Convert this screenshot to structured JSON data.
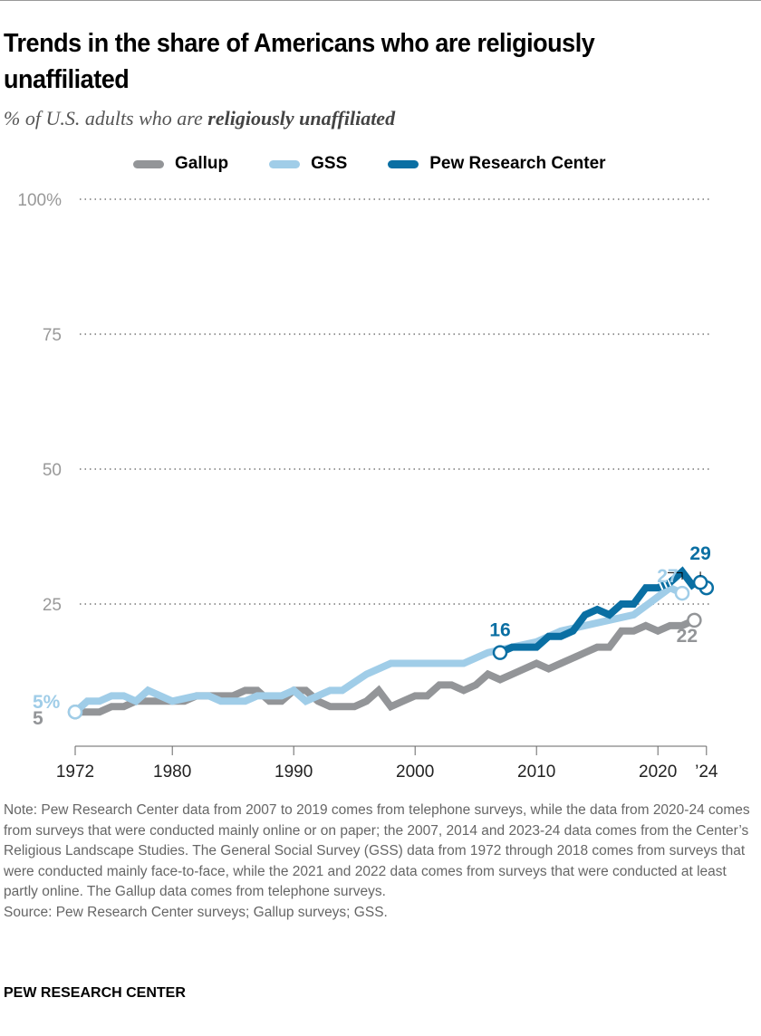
{
  "title": "Trends in the share of Americans who are religiously unaffiliated",
  "subtitle_prefix": "% of U.S. adults who are ",
  "subtitle_bold": "religiously unaffiliated",
  "colors": {
    "Gallup": "#939598",
    "GSS": "#a0cde8",
    "Pew Research Center": "#0a6fa3"
  },
  "chart_data": {
    "type": "line",
    "xlim": [
      1972,
      2024
    ],
    "ylim": [
      0,
      100
    ],
    "y_ticks": [
      "100%",
      "75",
      "50",
      "25"
    ],
    "y_tick_values": [
      100,
      75,
      50,
      25
    ],
    "x_ticks": [
      "1972",
      "1980",
      "1990",
      "2000",
      "2010",
      "2020",
      "’24"
    ],
    "x_tick_values": [
      1972,
      1980,
      1990,
      2000,
      2010,
      2020,
      2024
    ],
    "grid": "dotted horizontal",
    "legend_placement": "top",
    "series": [
      {
        "name": "Gallup",
        "x": [
          1972,
          1973,
          1974,
          1975,
          1976,
          1977,
          1978,
          1979,
          1980,
          1981,
          1982,
          1983,
          1984,
          1985,
          1986,
          1987,
          1988,
          1989,
          1990,
          1991,
          1992,
          1993,
          1994,
          1995,
          1996,
          1997,
          1998,
          1999,
          2000,
          2001,
          2002,
          2003,
          2004,
          2005,
          2006,
          2007,
          2008,
          2009,
          2010,
          2011,
          2012,
          2013,
          2014,
          2015,
          2016,
          2017,
          2018,
          2019,
          2020,
          2021,
          2022,
          2023
        ],
        "y": [
          5,
          5,
          5,
          6,
          6,
          7,
          7,
          7,
          7,
          7,
          8,
          8,
          8,
          8,
          9,
          9,
          7,
          7,
          9,
          9,
          7,
          6,
          6,
          6,
          7,
          9,
          6,
          7,
          8,
          8,
          10,
          10,
          9,
          10,
          12,
          11,
          12,
          13,
          14,
          13,
          14,
          15,
          16,
          17,
          17,
          20,
          20,
          21,
          20,
          21,
          21,
          22
        ]
      },
      {
        "name": "GSS",
        "x": [
          1972,
          1973,
          1974,
          1975,
          1976,
          1977,
          1978,
          1980,
          1982,
          1983,
          1984,
          1985,
          1986,
          1987,
          1988,
          1989,
          1990,
          1991,
          1993,
          1994,
          1996,
          1998,
          2000,
          2002,
          2004,
          2006,
          2008,
          2010,
          2012,
          2014,
          2016,
          2018,
          2021,
          2022
        ],
        "y": [
          5,
          7,
          7,
          8,
          8,
          7,
          9,
          7,
          8,
          8,
          7,
          7,
          7,
          8,
          8,
          8,
          9,
          7,
          9,
          9,
          12,
          14,
          14,
          14,
          14,
          16,
          17,
          18,
          20,
          21,
          22,
          23,
          28,
          27
        ]
      },
      {
        "name": "Pew Research Center",
        "x": [
          2007,
          2008,
          2009,
          2010,
          2011,
          2012,
          2013,
          2014,
          2015,
          2016,
          2017,
          2018,
          2019,
          2020,
          2021,
          2022,
          2023,
          2023.5,
          2024
        ],
        "y": [
          16,
          17,
          17,
          17,
          19,
          19,
          20,
          23,
          24,
          23,
          25,
          25,
          28,
          28,
          29,
          31,
          28,
          29,
          28
        ]
      }
    ],
    "annotations": [
      {
        "text": "5%",
        "series": "GSS"
      },
      {
        "text": "5",
        "series": "Gallup"
      },
      {
        "text": "16",
        "series": "Pew Research Center"
      },
      {
        "text": "27",
        "series": "GSS"
      },
      {
        "text": "29",
        "series": "Pew Research Center"
      },
      {
        "text": "22",
        "series": "Gallup"
      }
    ]
  },
  "note": "Note: Pew Research Center data from 2007 to 2019 comes from telephone surveys, while the data from 2020-24 comes from surveys that were conducted mainly online or on paper; the 2007, 2014 and 2023-24 data comes from the Center’s Religious Landscape Studies. The General Social Survey (GSS) data from 1972 through 2018 comes from surveys that were conducted mainly face-to-face, while the 2021 and 2022 data comes from surveys that were conducted at least partly online. The Gallup data comes from telephone surveys.",
  "source": "Source: Pew Research Center surveys; Gallup surveys; GSS.",
  "brand": "PEW RESEARCH CENTER"
}
